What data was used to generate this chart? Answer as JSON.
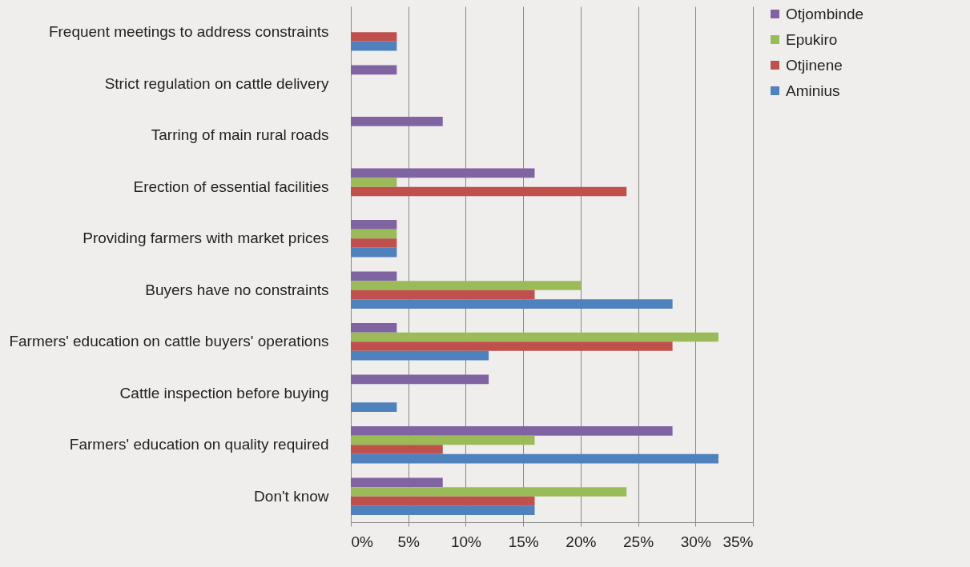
{
  "chart_data": {
    "type": "bar",
    "orientation": "horizontal",
    "categories": [
      "Frequent meetings to address constraints",
      "Strict regulation on cattle delivery",
      "Tarring of main rural roads",
      "Erection of essential facilities",
      "Providing farmers with market prices",
      "Buyers have no constraints",
      "Farmers' education on cattle buyers' operations",
      "Cattle inspection before buying",
      "Farmers' education on quality required",
      "Don't know"
    ],
    "series": [
      {
        "name": "Otjombinde",
        "color": "#8064a2",
        "values": [
          null,
          4,
          8,
          16,
          4,
          4,
          4,
          12,
          28,
          8
        ]
      },
      {
        "name": "Epukiro",
        "color": "#9bbb59",
        "values": [
          null,
          null,
          null,
          4,
          4,
          20,
          32,
          null,
          16,
          24
        ]
      },
      {
        "name": "Otjinene",
        "color": "#c0504d",
        "values": [
          4,
          null,
          null,
          24,
          4,
          16,
          28,
          null,
          8,
          16
        ]
      },
      {
        "name": "Aminius",
        "color": "#4f81bd",
        "values": [
          4,
          null,
          null,
          null,
          4,
          28,
          12,
          4,
          32,
          16
        ]
      }
    ],
    "xlim": [
      0,
      35
    ],
    "xticks": [
      {
        "value": 0,
        "label": "0%"
      },
      {
        "value": 5,
        "label": "5%"
      },
      {
        "value": 10,
        "label": "10%"
      },
      {
        "value": 15,
        "label": "15%"
      },
      {
        "value": 20,
        "label": "20%"
      },
      {
        "value": 25,
        "label": "25%"
      },
      {
        "value": 30,
        "label": "30%"
      },
      {
        "value": 35,
        "label": "35%"
      }
    ],
    "grid": "x",
    "legend": "right"
  }
}
